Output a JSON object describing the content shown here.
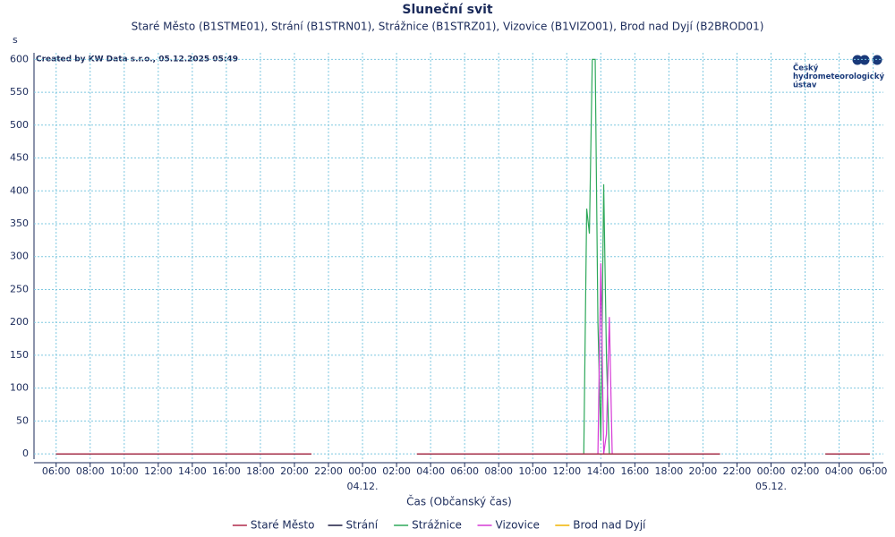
{
  "chart_data": {
    "type": "line",
    "title": "Sluneční svit",
    "subtitle": "Staré Město (B1STME01), Strání (B1STRN01), Strážnice (B1STRZ01), Vizovice (B1VIZO01), Brod nad Dyjí (B2BROD01)",
    "y_unit": "s",
    "x_label": "Čas (Občanský čas)",
    "credit": "Created by KW Data s.r.o., 05.12.2025 05:49",
    "logo": [
      "Český",
      "hydrometeorologický",
      "ústav"
    ],
    "x": [
      -18,
      -3,
      0,
      3.2,
      13,
      13.17,
      13.33,
      13.5,
      13.67,
      13.83,
      14,
      14.17,
      14.33,
      14.5,
      14.67,
      21,
      24,
      27.2,
      29.8
    ],
    "series": [
      {
        "name": "Strážnice",
        "color": "#2ea85a",
        "values": [
          0,
          0,
          null,
          0,
          0,
          373,
          335,
          600,
          600,
          200,
          20,
          410,
          150,
          0,
          0,
          0,
          null,
          0,
          0
        ]
      },
      {
        "name": "Vizovice",
        "color": "#d63ad6",
        "values": [
          0,
          0,
          null,
          0,
          0,
          0,
          0,
          0,
          0,
          0,
          290,
          0,
          30,
          208,
          0,
          0,
          null,
          0,
          0
        ]
      },
      {
        "name": "Brod nad Dyjí",
        "color": "#f0b400",
        "values": [
          0,
          0,
          null,
          0,
          0,
          0,
          0,
          0,
          0,
          0,
          0,
          0,
          0,
          0,
          0,
          0,
          null,
          0,
          0
        ]
      },
      {
        "name": "Strání",
        "color": "#1a1a40",
        "values": [
          0,
          0,
          null,
          0,
          0,
          0,
          0,
          0,
          0,
          0,
          0,
          0,
          0,
          0,
          0,
          0,
          null,
          0,
          0
        ]
      },
      {
        "name": "Staré Město",
        "color": "#b0284a",
        "values": [
          0,
          0,
          null,
          0,
          0,
          0,
          0,
          0,
          0,
          0,
          0,
          0,
          0,
          0,
          0,
          0,
          null,
          0,
          0
        ]
      }
    ],
    "legend_order": [
      4,
      3,
      0,
      1,
      2
    ],
    "xlim": [
      -19.3,
      30.6
    ],
    "ylim": [
      -8,
      610
    ],
    "yticks": [
      0,
      50,
      100,
      150,
      200,
      250,
      300,
      350,
      400,
      450,
      500,
      550,
      600
    ],
    "xticks": [
      {
        "value": -18,
        "label": "06:00"
      },
      {
        "value": -16,
        "label": "08:00"
      },
      {
        "value": -14,
        "label": "10:00"
      },
      {
        "value": -12,
        "label": "12:00"
      },
      {
        "value": -10,
        "label": "14:00"
      },
      {
        "value": -8,
        "label": "16:00"
      },
      {
        "value": -6,
        "label": "18:00"
      },
      {
        "value": -4,
        "label": "20:00"
      },
      {
        "value": -2,
        "label": "22:00"
      },
      {
        "value": 0,
        "label": "00:00"
      },
      {
        "value": 2,
        "label": "02:00"
      },
      {
        "value": 4,
        "label": "04:00"
      },
      {
        "value": 6,
        "label": "06:00"
      },
      {
        "value": 8,
        "label": "08:00"
      },
      {
        "value": 10,
        "label": "10:00"
      },
      {
        "value": 12,
        "label": "12:00"
      },
      {
        "value": 14,
        "label": "14:00"
      },
      {
        "value": 16,
        "label": "16:00"
      },
      {
        "value": 18,
        "label": "18:00"
      },
      {
        "value": 20,
        "label": "20:00"
      },
      {
        "value": 22,
        "label": "22:00"
      },
      {
        "value": 24,
        "label": "00:00"
      },
      {
        "value": 26,
        "label": "02:00"
      },
      {
        "value": 28,
        "label": "04:00"
      },
      {
        "value": 30,
        "label": "06:00"
      }
    ],
    "date_labels": [
      {
        "value": 0,
        "label": "04.12."
      },
      {
        "value": 24,
        "label": "05.12."
      }
    ],
    "grid": true
  }
}
